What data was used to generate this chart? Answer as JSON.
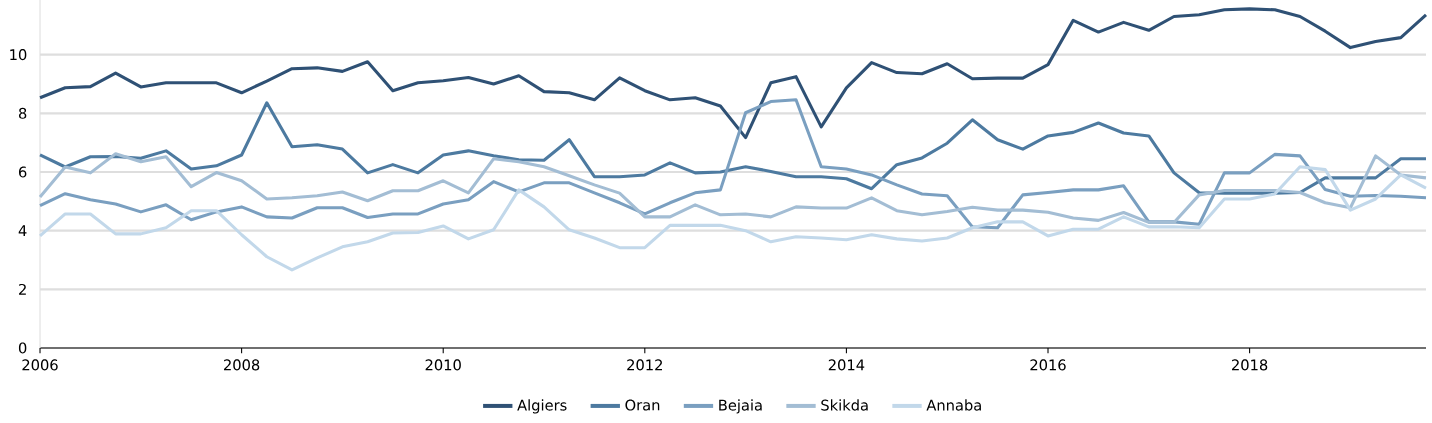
{
  "chart_data": {
    "type": "line",
    "x": [
      2006,
      2006.25,
      2006.5,
      2006.75,
      2007,
      2007.25,
      2007.5,
      2007.75,
      2008,
      2008.25,
      2008.5,
      2008.75,
      2009,
      2009.25,
      2009.5,
      2009.75,
      2010,
      2010.25,
      2010.5,
      2010.75,
      2011,
      2011.25,
      2011.5,
      2011.75,
      2012,
      2012.25,
      2012.5,
      2012.75,
      2013,
      2013.25,
      2013.5,
      2013.75,
      2014,
      2014.25,
      2014.5,
      2014.75,
      2015,
      2015.25,
      2015.5,
      2015.75,
      2016,
      2016.25,
      2016.5,
      2016.75,
      2017,
      2017.25,
      2017.5,
      2017.75,
      2018,
      2018.25,
      2018.5,
      2018.75,
      2019,
      2019.25,
      2019.5,
      2019.75
    ],
    "series": [
      {
        "name": "Algiers",
        "color": "#2f5175",
        "values": [
          8.53,
          8.87,
          8.91,
          9.37,
          8.9,
          9.04,
          9.04,
          9.04,
          8.7,
          9.1,
          9.52,
          9.55,
          9.43,
          9.76,
          8.77,
          9.04,
          9.11,
          9.22,
          9.0,
          9.28,
          8.74,
          8.7,
          8.46,
          9.21,
          8.77,
          8.46,
          8.53,
          8.25,
          7.17,
          9.04,
          9.25,
          7.54,
          8.87,
          9.73,
          9.39,
          9.35,
          9.69,
          9.18,
          9.2,
          9.2,
          9.66,
          11.17,
          10.77,
          11.1,
          10.83,
          11.3,
          11.36,
          11.53,
          11.56,
          11.53,
          11.3,
          10.8,
          10.24,
          10.45,
          10.58,
          11.36
        ]
      },
      {
        "name": "Oran",
        "color": "#4d7aa0",
        "values": [
          6.58,
          6.17,
          6.52,
          6.53,
          6.47,
          6.72,
          6.1,
          6.21,
          6.58,
          8.36,
          6.86,
          6.93,
          6.78,
          5.97,
          6.25,
          5.97,
          6.58,
          6.72,
          6.55,
          6.42,
          6.4,
          7.1,
          5.84,
          5.84,
          5.9,
          6.31,
          5.97,
          6.0,
          6.18,
          6.02,
          5.84,
          5.84,
          5.77,
          5.43,
          6.25,
          6.48,
          6.98,
          7.78,
          7.1,
          6.78,
          7.23,
          7.35,
          7.67,
          7.33,
          7.23,
          5.97,
          5.29,
          5.28,
          5.28,
          5.28,
          5.3,
          5.8,
          5.8,
          5.8,
          6.45,
          6.45
        ]
      },
      {
        "name": "Bejaia",
        "color": "#7a9fc0",
        "values": [
          4.85,
          5.26,
          5.05,
          4.91,
          4.64,
          4.88,
          4.37,
          4.64,
          4.81,
          4.47,
          4.43,
          4.78,
          4.78,
          4.45,
          4.57,
          4.57,
          4.91,
          5.05,
          5.67,
          5.32,
          5.63,
          5.63,
          5.29,
          4.95,
          4.57,
          4.95,
          5.29,
          5.39,
          8.02,
          8.4,
          8.46,
          6.18,
          6.1,
          5.9,
          5.56,
          5.25,
          5.19,
          4.13,
          4.1,
          5.22,
          5.3,
          5.39,
          5.39,
          5.53,
          4.3,
          4.3,
          4.22,
          5.97,
          5.97,
          6.6,
          6.55,
          5.4,
          5.17,
          5.2,
          5.17,
          5.12
        ]
      },
      {
        "name": "Skikda",
        "color": "#a3bdd4",
        "values": [
          5.15,
          6.17,
          5.97,
          6.62,
          6.35,
          6.52,
          5.5,
          5.98,
          5.7,
          5.08,
          5.12,
          5.19,
          5.32,
          5.02,
          5.36,
          5.36,
          5.7,
          5.29,
          6.45,
          6.35,
          6.18,
          5.87,
          5.56,
          5.28,
          4.47,
          4.47,
          4.88,
          4.54,
          4.57,
          4.47,
          4.81,
          4.77,
          4.77,
          5.12,
          4.68,
          4.54,
          4.65,
          4.8,
          4.7,
          4.7,
          4.63,
          4.43,
          4.35,
          4.62,
          4.28,
          4.28,
          5.22,
          5.37,
          5.37,
          5.37,
          5.3,
          4.95,
          4.78,
          6.55,
          5.9,
          5.8
        ]
      },
      {
        "name": "Annaba",
        "color": "#c2d8ea",
        "values": [
          3.82,
          4.57,
          4.57,
          3.89,
          3.89,
          4.1,
          4.68,
          4.68,
          3.86,
          3.11,
          2.66,
          3.07,
          3.45,
          3.62,
          3.92,
          3.94,
          4.16,
          3.72,
          4.03,
          5.39,
          4.81,
          4.03,
          3.75,
          3.42,
          3.42,
          4.18,
          4.18,
          4.18,
          4.0,
          3.62,
          3.79,
          3.75,
          3.69,
          3.86,
          3.72,
          3.65,
          3.75,
          4.1,
          4.3,
          4.3,
          3.82,
          4.05,
          4.05,
          4.47,
          4.13,
          4.13,
          4.1,
          5.08,
          5.08,
          5.25,
          6.18,
          6.08,
          4.7,
          5.08,
          5.9,
          5.45
        ]
      }
    ],
    "xlim": [
      2006,
      2019.75
    ],
    "ylim": [
      0,
      12
    ],
    "xticks": [
      2006,
      2008,
      2010,
      2012,
      2014,
      2016,
      2018
    ],
    "yticks": [
      0,
      2,
      4,
      6,
      8,
      10
    ],
    "grid": "y",
    "legend": "bottom",
    "line_style": "solid"
  }
}
